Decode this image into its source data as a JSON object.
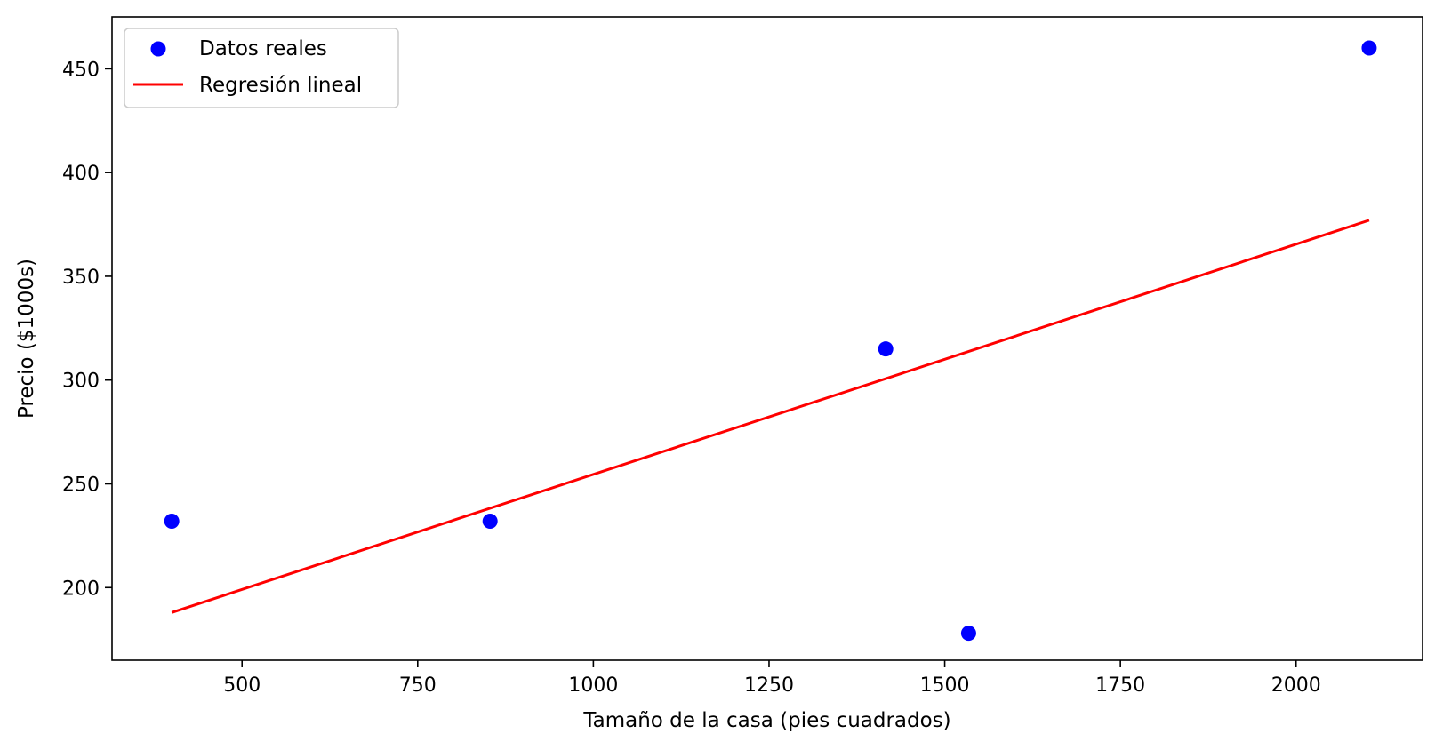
{
  "chart_data": {
    "type": "scatter",
    "title": "",
    "xlabel": "Tamaño de la casa (pies cuadrados)",
    "ylabel": "Precio ($1000s)",
    "xlim": [
      315,
      2180
    ],
    "ylim": [
      165,
      475
    ],
    "xticks": [
      500,
      750,
      1000,
      1250,
      1500,
      1750,
      2000
    ],
    "yticks": [
      200,
      250,
      300,
      350,
      400,
      450
    ],
    "grid": false,
    "legend_position": "top-left",
    "series": [
      {
        "name": "Datos reales",
        "kind": "scatter",
        "color": "#0000ff",
        "points": [
          {
            "x": 400,
            "y": 232
          },
          {
            "x": 853,
            "y": 232
          },
          {
            "x": 1416,
            "y": 315
          },
          {
            "x": 1534,
            "y": 178
          },
          {
            "x": 2104,
            "y": 460
          }
        ]
      },
      {
        "name": "Regresión lineal",
        "kind": "line",
        "color": "#ff0000",
        "points": [
          {
            "x": 400,
            "y": 188
          },
          {
            "x": 2104,
            "y": 377
          }
        ]
      }
    ]
  }
}
